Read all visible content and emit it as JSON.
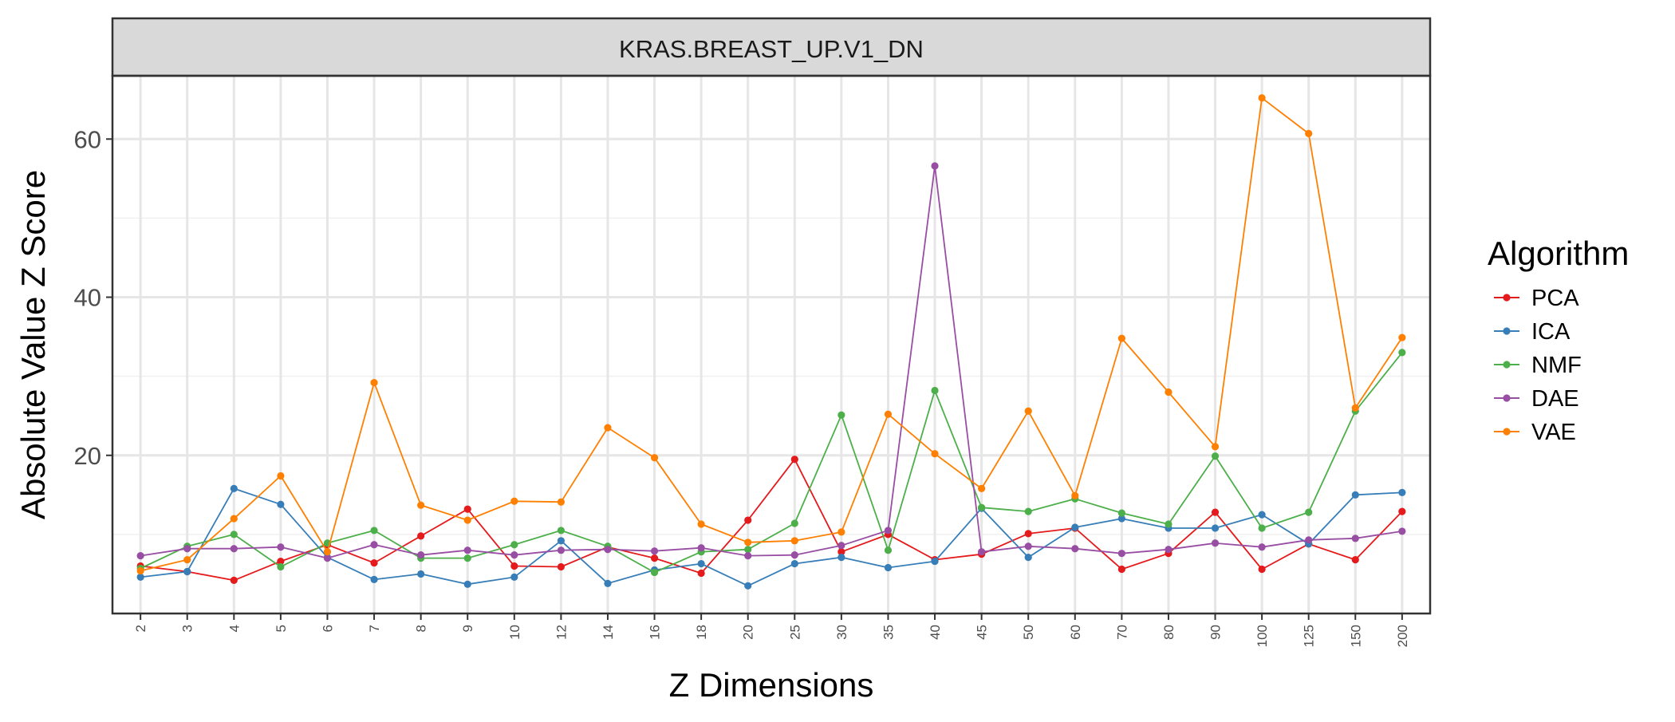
{
  "chart_data": {
    "type": "line",
    "facet_title": "KRAS.BREAST_UP.V1_DN",
    "xlabel": "Z Dimensions",
    "ylabel": "Absolute Value Z Score",
    "categories": [
      "2",
      "3",
      "4",
      "5",
      "6",
      "7",
      "8",
      "9",
      "10",
      "12",
      "14",
      "16",
      "18",
      "20",
      "25",
      "30",
      "35",
      "40",
      "45",
      "50",
      "60",
      "70",
      "80",
      "90",
      "100",
      "125",
      "150",
      "200"
    ],
    "y_ticks": [
      20,
      40,
      60
    ],
    "ylim": [
      0,
      68
    ],
    "grid": true,
    "legend": {
      "title": "Algorithm",
      "position": "right"
    },
    "series": [
      {
        "name": "PCA",
        "color": "#e41a1c",
        "values": [
          6.0,
          5.3,
          4.2,
          6.6,
          8.7,
          6.4,
          9.8,
          13.2,
          6.0,
          5.9,
          8.4,
          7.0,
          5.1,
          11.8,
          19.5,
          7.8,
          10.0,
          6.8,
          7.5,
          10.1,
          10.8,
          5.6,
          7.6,
          12.8,
          5.6,
          8.8,
          6.8,
          12.9
        ]
      },
      {
        "name": "ICA",
        "color": "#377eb8",
        "values": [
          4.6,
          5.3,
          15.8,
          13.8,
          7.1,
          4.3,
          5.0,
          3.7,
          4.6,
          9.2,
          3.8,
          5.5,
          6.3,
          3.5,
          6.3,
          7.1,
          5.8,
          6.6,
          13.3,
          7.1,
          10.9,
          12.0,
          10.8,
          10.8,
          12.5,
          8.8,
          15.0,
          15.3
        ]
      },
      {
        "name": "NMF",
        "color": "#4daf4a",
        "values": [
          5.7,
          8.5,
          10.0,
          5.9,
          8.9,
          10.5,
          7.0,
          7.0,
          8.7,
          10.5,
          8.5,
          5.2,
          7.8,
          8.1,
          11.4,
          25.1,
          8.0,
          28.2,
          13.4,
          12.9,
          14.5,
          12.7,
          11.3,
          19.9,
          10.8,
          12.8,
          25.6,
          33.0
        ]
      },
      {
        "name": "DAE",
        "color": "#984ea3",
        "values": [
          7.3,
          8.2,
          8.2,
          8.4,
          7.0,
          8.7,
          7.4,
          8.0,
          7.4,
          8.0,
          8.1,
          7.9,
          8.3,
          7.3,
          7.4,
          8.6,
          10.5,
          56.6,
          7.8,
          8.5,
          8.2,
          7.6,
          8.1,
          8.9,
          8.4,
          9.3,
          9.5,
          10.4
        ]
      },
      {
        "name": "VAE",
        "color": "#ff7f00",
        "values": [
          5.4,
          6.8,
          12.0,
          17.4,
          7.8,
          29.2,
          13.7,
          11.8,
          14.2,
          14.1,
          23.5,
          19.7,
          11.3,
          9.0,
          9.2,
          10.3,
          25.2,
          20.2,
          15.8,
          25.6,
          14.9,
          34.8,
          28.0,
          21.1,
          65.2,
          60.7,
          26.0,
          34.9
        ]
      }
    ]
  }
}
